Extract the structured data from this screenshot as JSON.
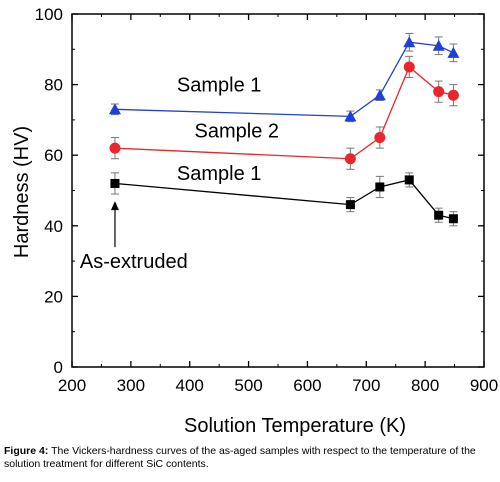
{
  "chart_data": {
    "type": "line",
    "xlabel": "Solution Temperature (K)",
    "ylabel": "Hardness (HV)",
    "xlim": [
      200,
      900
    ],
    "ylim": [
      0,
      100
    ],
    "xticks": [
      200,
      300,
      400,
      500,
      600,
      700,
      800,
      900
    ],
    "yticks": [
      0,
      20,
      40,
      60,
      80,
      100
    ],
    "grid": false,
    "series": [
      {
        "marker": "triangle",
        "color": "#1f3fd6",
        "x": [
          273,
          673,
          723,
          773,
          823,
          848
        ],
        "y": [
          73,
          71,
          77,
          92,
          91,
          89
        ],
        "err": [
          1.5,
          1.5,
          1.5,
          2.5,
          2.5,
          2.5
        ]
      },
      {
        "marker": "circle",
        "color": "#e8262b",
        "x": [
          273,
          673,
          723,
          773,
          823,
          848
        ],
        "y": [
          62,
          59,
          65,
          85,
          78,
          77
        ],
        "err": [
          3,
          3,
          3,
          3,
          3,
          3
        ]
      },
      {
        "marker": "square",
        "color": "#000000",
        "x": [
          273,
          673,
          723,
          773,
          823,
          848
        ],
        "y": [
          52,
          46,
          51,
          53,
          43,
          42
        ],
        "err": [
          3,
          2,
          3,
          2,
          2,
          2
        ]
      }
    ],
    "annotations": [
      {
        "text": "Sample 1",
        "x": 450,
        "y": 80
      },
      {
        "text": "Sample 2",
        "x": 480,
        "y": 67
      },
      {
        "text": "Sample 1",
        "x": 450,
        "y": 55
      },
      {
        "text": "As-extruded",
        "x": 305,
        "y": 30,
        "arrow_to": [
          273,
          47
        ]
      }
    ]
  },
  "caption": {
    "label": "Figure 4:",
    "text": " The Vickers-hardness curves of the as-aged samples with respect to the temperature of the solution treatment for different SiC contents."
  }
}
